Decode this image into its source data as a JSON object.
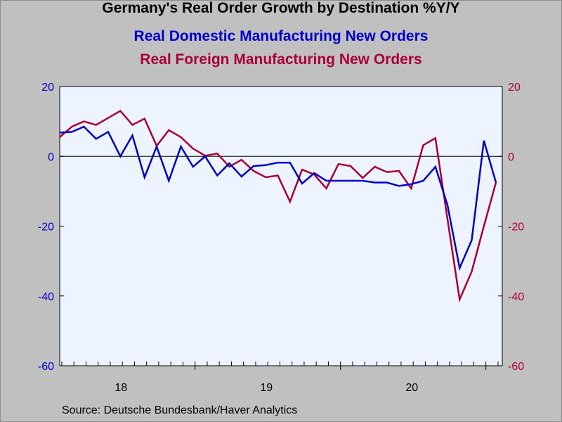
{
  "chart_data": {
    "type": "line",
    "title": "Germany's Real Order Growth by Destination %Y/Y",
    "series": [
      {
        "name": "Real Domestic Manufacturing New Orders",
        "color": "#0000cc",
        "values": [
          6.8,
          7.0,
          8.5,
          5.0,
          7.0,
          0.0,
          6.0,
          -6.0,
          2.8,
          -7.0,
          2.8,
          -3.0,
          0.0,
          -5.5,
          -2.0,
          -5.8,
          -2.8,
          -2.5,
          -1.8,
          -1.8,
          -7.8,
          -4.8,
          -7.0,
          -7.0,
          -7.0,
          -7.0,
          -7.5,
          -7.5,
          -8.5,
          -8.0,
          -7.0,
          -3.0,
          -14.0,
          -32.0,
          -24.0,
          4.5,
          -7.5
        ]
      },
      {
        "name": "Real Foreign Manufacturing New Orders",
        "color": "#aa0033",
        "values": [
          5.5,
          8.5,
          10.0,
          9.0,
          11.0,
          13.0,
          9.0,
          10.8,
          3.0,
          7.5,
          5.5,
          2.2,
          0.2,
          0.8,
          -3.0,
          -1.0,
          -4.2,
          -6.0,
          -5.5,
          -13.0,
          -3.8,
          -5.2,
          -9.2,
          -2.2,
          -2.8,
          -6.2,
          -3.0,
          -4.5,
          -4.2,
          -9.2,
          3.2,
          5.2,
          -18.0,
          -41.0,
          -33.0,
          -20.0,
          -7.5
        ]
      }
    ],
    "x_tick_labels": [
      "18",
      "19",
      "20"
    ],
    "x_label_positions": [
      5,
      17,
      29
    ],
    "ylim": [
      -60,
      20
    ],
    "y_ticks": [
      20,
      0,
      -20,
      -40,
      -60
    ],
    "y_tick_colors": {
      "left": "#0000cc",
      "right": "#aa0033"
    },
    "source": "Source:  Deutsche Bundesbank/Haver Analytics",
    "subtitle_1": "Real Domestic Manufacturing New Orders",
    "subtitle_2": "Real Foreign Manufacturing New Orders"
  }
}
